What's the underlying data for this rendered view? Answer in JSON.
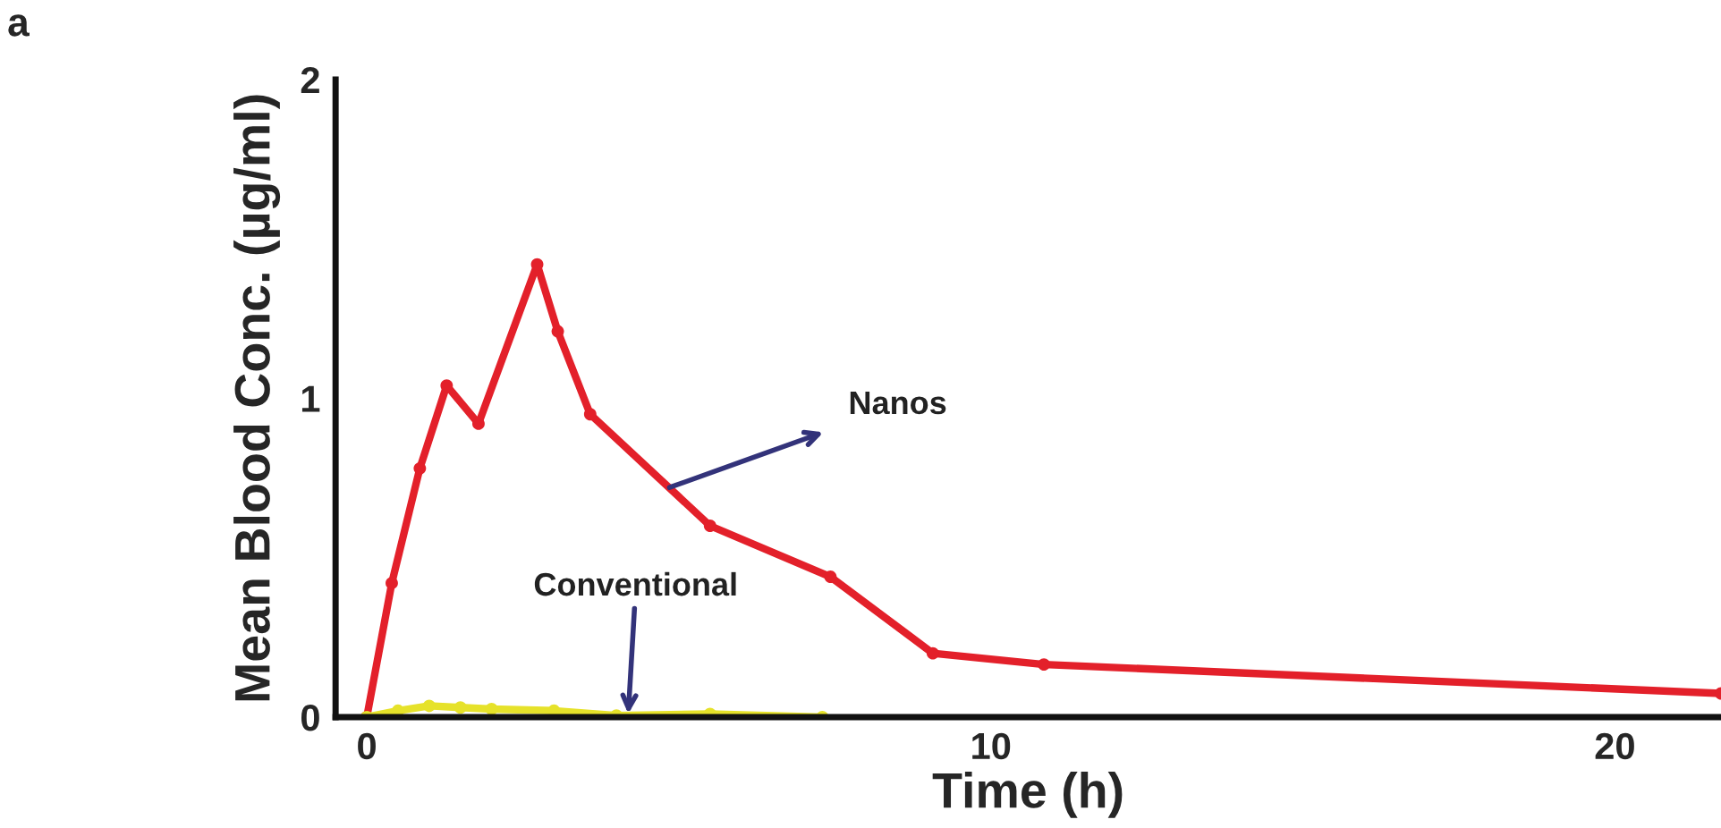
{
  "chart_data": {
    "type": "line",
    "xlabel": "Time (h)",
    "ylabel": "Mean Blood Conc. (µg/ml)",
    "xlim": [
      -0.5,
      21.7
    ],
    "ylim": [
      0,
      2
    ],
    "xticks": [
      0,
      10,
      20
    ],
    "yticks": [
      0,
      1,
      2
    ],
    "grid": false,
    "legend": false,
    "marker": "circle",
    "line_style": "solid",
    "series": [
      {
        "color": "#e3202a",
        "x": [
          0,
          0.4,
          0.85,
          1.28,
          1.79,
          2.73,
          3.06,
          3.58,
          5.5,
          7.43,
          9.07,
          10.85,
          21.7
        ],
        "values": [
          0,
          0.42,
          0.78,
          1.04,
          0.92,
          1.42,
          1.21,
          0.95,
          0.6,
          0.44,
          0.2,
          0.165,
          0.074
        ]
      },
      {
        "color": "#e6e22a",
        "x": [
          0,
          0.5,
          1,
          1.5,
          2,
          3,
          4,
          5.5,
          7.3
        ],
        "values": [
          0,
          0.02,
          0.035,
          0.03,
          0.025,
          0.02,
          0.005,
          0.01,
          0.0
        ]
      }
    ],
    "annotations": [
      "a",
      {
        "text": "Nanos",
        "x": 4.85,
        "y": 0.72
      },
      {
        "text": "Conventional",
        "x": 4.19,
        "y": 0.01
      }
    ]
  }
}
